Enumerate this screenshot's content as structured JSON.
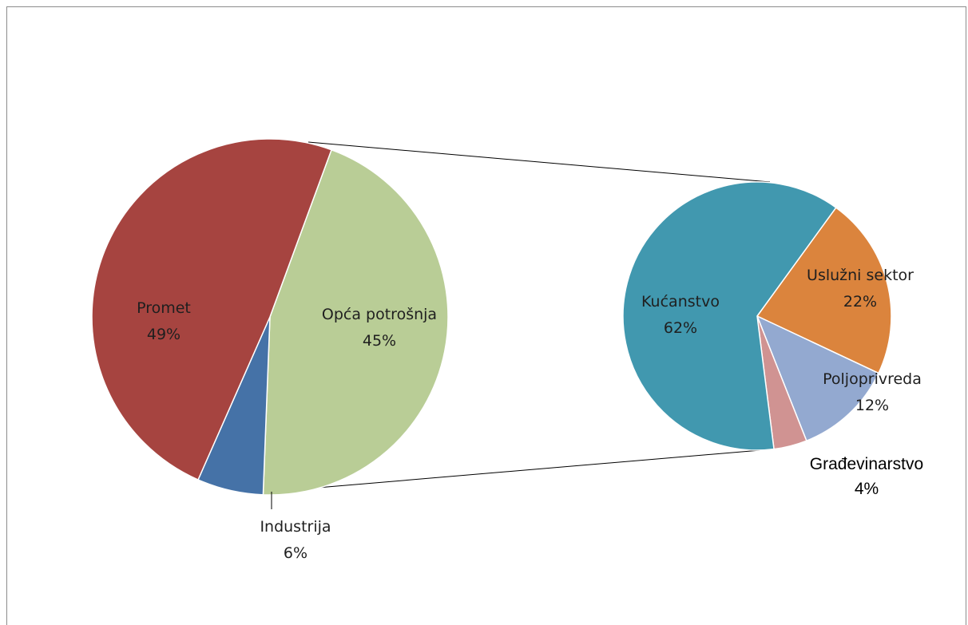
{
  "chart_data": {
    "type": "pie",
    "subtype": "pie-of-pie",
    "main_pie": {
      "slices": [
        {
          "label": "Promet",
          "value": 49,
          "value_label": "49%",
          "color": "#a64440"
        },
        {
          "label": "Industrija",
          "value": 6,
          "value_label": "6%",
          "color": "#4572a7"
        },
        {
          "label": "Opća potrošnja",
          "value": 45,
          "value_label": "45%",
          "color": "#b9cd96"
        }
      ]
    },
    "secondary_pie": {
      "breakdown_of": "Opća potrošnja",
      "slices": [
        {
          "label": "Kućanstvo",
          "value": 62,
          "value_label": "62%",
          "color": "#4198af"
        },
        {
          "label": "Uslužni sektor",
          "value": 22,
          "value_label": "22%",
          "color": "#db843d"
        },
        {
          "label": "Poljoprivreda",
          "value": 12,
          "value_label": "12%",
          "color": "#93a9d0"
        },
        {
          "label": "Građevinarstvo",
          "value": 4,
          "value_label": "4%",
          "color": "#d09392"
        }
      ]
    },
    "legend": "none"
  }
}
